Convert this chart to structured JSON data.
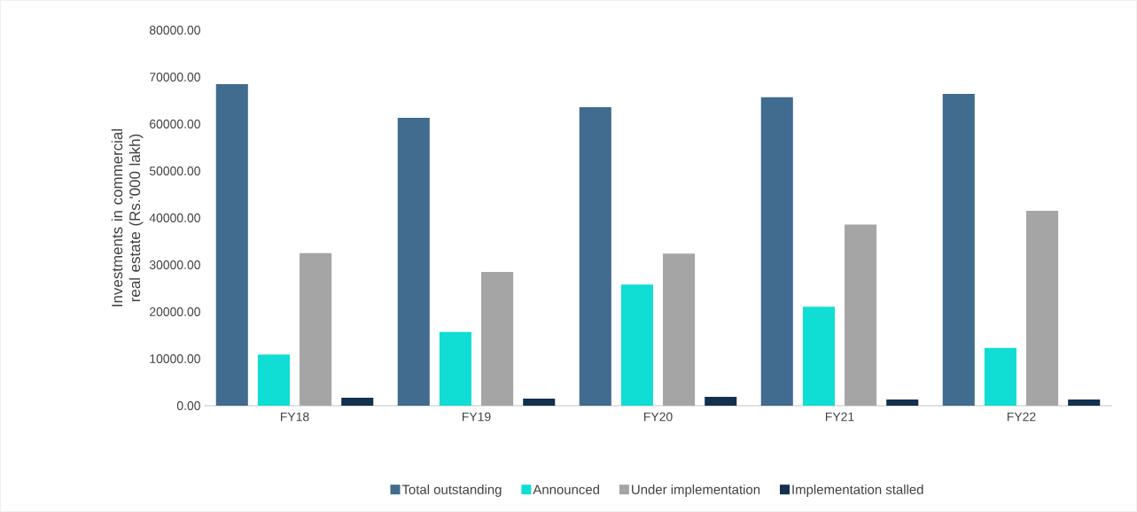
{
  "chart_data": {
    "type": "bar",
    "ylabel": "Investments in commercial real estate (Rs.'000 lakh)",
    "categories": [
      "FY18",
      "FY19",
      "FY20",
      "FY21",
      "FY22"
    ],
    "series": [
      {
        "name": "Total outstanding",
        "color": "#416b8f",
        "values": [
          68500,
          61300,
          63600,
          65700,
          66400
        ]
      },
      {
        "name": "Announced",
        "color": "#10ddd4",
        "values": [
          10900,
          15700,
          25800,
          21100,
          12300
        ]
      },
      {
        "name": "Under implementation",
        "color": "#a5a5a5",
        "values": [
          32500,
          28500,
          32400,
          38600,
          41500
        ]
      },
      {
        "name": "Implementation stalled",
        "color": "#14304f",
        "values": [
          1700,
          1500,
          1900,
          1300,
          1300
        ]
      }
    ],
    "ylim": [
      0,
      80000
    ],
    "yticks": [
      {
        "value": 0,
        "label": "0.00"
      },
      {
        "value": 10000,
        "label": "10000.00"
      },
      {
        "value": 20000,
        "label": "20000.00"
      },
      {
        "value": 30000,
        "label": "30000.00"
      },
      {
        "value": 40000,
        "label": "40000.00"
      },
      {
        "value": 50000,
        "label": "50000.00"
      },
      {
        "value": 60000,
        "label": "60000.00"
      },
      {
        "value": 70000,
        "label": "70000.00"
      },
      {
        "value": 80000,
        "label": "80000.00"
      }
    ],
    "legend": "bottom"
  }
}
